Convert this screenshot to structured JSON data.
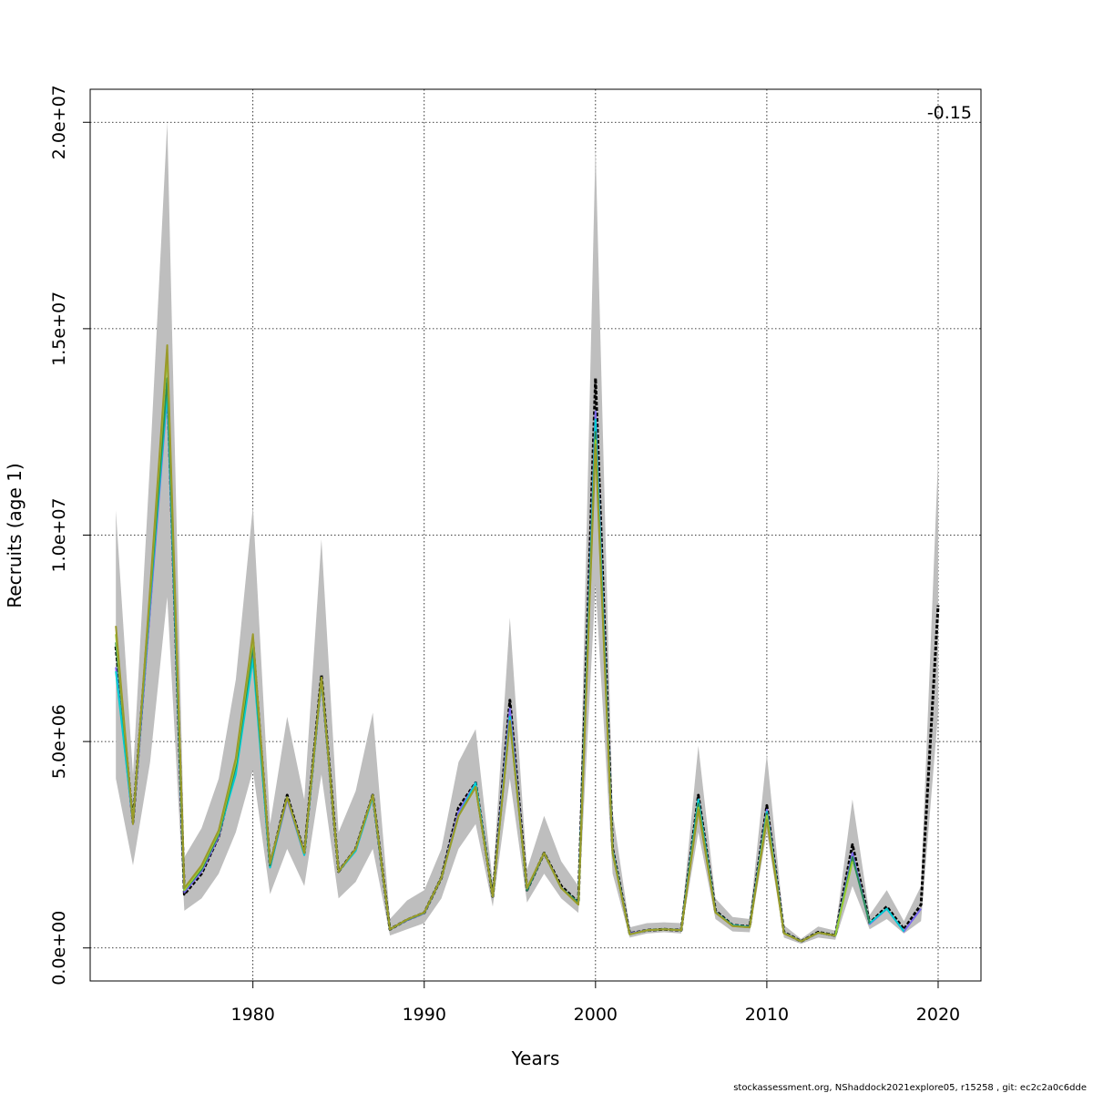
{
  "chart_data": {
    "type": "line",
    "xlabel": "Years",
    "ylabel": "Recruits (age 1)",
    "xlim": [
      1970.5,
      2022.5
    ],
    "ylim": [
      -800000,
      20800000
    ],
    "x_ticks": [
      1980,
      1990,
      2000,
      2010,
      2020
    ],
    "x_tick_labels": [
      "1980",
      "1990",
      "2000",
      "2010",
      "2020"
    ],
    "y_ticks": [
      0,
      5000000,
      10000000,
      15000000,
      20000000
    ],
    "y_tick_labels": [
      "0.0e+00",
      "5.0e+06",
      "1.0e+07",
      "1.5e+07",
      "2.0e+07"
    ],
    "grid": true,
    "annotation": "-0.15",
    "x": [
      1972,
      1973,
      1974,
      1975,
      1976,
      1977,
      1978,
      1979,
      1980,
      1981,
      1982,
      1983,
      1984,
      1985,
      1986,
      1987,
      1988,
      1989,
      1990,
      1991,
      1992,
      1993,
      1994,
      1995,
      1996,
      1997,
      1998,
      1999,
      2000,
      2001,
      2002,
      2003,
      2004,
      2005,
      2006,
      2007,
      2008,
      2009,
      2010,
      2011,
      2012,
      2013,
      2014,
      2015,
      2016,
      2017,
      2018,
      2019,
      2020
    ],
    "band": {
      "lower": [
        4100000,
        2000000,
        4500000,
        8500000,
        900000,
        1200000,
        1800000,
        2800000,
        4300000,
        1300000,
        2400000,
        1500000,
        4200000,
        1200000,
        1600000,
        2400000,
        300000,
        450000,
        600000,
        1200000,
        2400000,
        3000000,
        1000000,
        4100000,
        1100000,
        1800000,
        1200000,
        850000,
        8800000,
        1800000,
        250000,
        350000,
        380000,
        350000,
        2800000,
        700000,
        400000,
        380000,
        2800000,
        250000,
        100000,
        250000,
        200000,
        1500000,
        450000,
        700000,
        350000,
        650000,
        5700000
      ],
      "upper": [
        10600000,
        4200000,
        11800000,
        20000000,
        2200000,
        2900000,
        4100000,
        6500000,
        10700000,
        3000000,
        5600000,
        3600000,
        9900000,
        2800000,
        3800000,
        5700000,
        700000,
        1150000,
        1400000,
        2400000,
        4500000,
        5300000,
        1600000,
        8000000,
        1900000,
        3200000,
        2100000,
        1500000,
        19400000,
        3300000,
        500000,
        600000,
        620000,
        600000,
        4900000,
        1200000,
        750000,
        700000,
        4700000,
        550000,
        220000,
        520000,
        420000,
        3600000,
        800000,
        1400000,
        650000,
        1500000,
        11900000
      ],
      "color": "#bebebe"
    },
    "series": [
      {
        "color": "#000000",
        "values": [
          7300000,
          3050000,
          8400000,
          13700000,
          1300000,
          1800000,
          2700000,
          4400000,
          7400000,
          2000000,
          3700000,
          2300000,
          6600000,
          1850000,
          2400000,
          3700000,
          450000,
          680000,
          850000,
          1700000,
          3400000,
          4000000,
          1250000,
          6000000,
          1400000,
          2300000,
          1500000,
          1100000,
          13800000,
          2400000,
          350000,
          430000,
          450000,
          430000,
          3700000,
          900000,
          550000,
          520000,
          3450000,
          380000,
          160000,
          380000,
          300000,
          2500000,
          600000,
          1000000,
          450000,
          1050000,
          8300000
        ]
      },
      {
        "color": "#7b68ee",
        "values": [
          6800000,
          3000000,
          8200000,
          13400000,
          1350000,
          1850000,
          2700000,
          4300000,
          7100000,
          1950000,
          3600000,
          2250000,
          6500000,
          1850000,
          2350000,
          3650000,
          450000,
          670000,
          840000,
          1700000,
          3300000,
          4000000,
          1250000,
          5800000,
          1400000,
          2300000,
          1450000,
          1100000,
          13000000,
          2350000,
          350000,
          430000,
          450000,
          430000,
          3600000,
          880000,
          540000,
          510000,
          3350000,
          370000,
          160000,
          370000,
          300000,
          2300000,
          580000,
          950000,
          400000,
          950000,
          null
        ]
      },
      {
        "color": "#00ced1",
        "values": [
          6700000,
          3050000,
          8400000,
          13500000,
          1400000,
          1900000,
          2750000,
          4200000,
          7000000,
          1950000,
          3650000,
          2250000,
          6500000,
          1850000,
          2350000,
          3650000,
          450000,
          680000,
          850000,
          1700000,
          3200000,
          4000000,
          1250000,
          5600000,
          1400000,
          2300000,
          1450000,
          1100000,
          12800000,
          2350000,
          330000,
          430000,
          450000,
          430000,
          3600000,
          870000,
          550000,
          510000,
          3300000,
          360000,
          160000,
          370000,
          300000,
          2200000,
          600000,
          950000,
          400000,
          null,
          null
        ]
      },
      {
        "color": "#2e8b57",
        "values": [
          7400000,
          3050000,
          8500000,
          13800000,
          1400000,
          1900000,
          2750000,
          4400000,
          7300000,
          2000000,
          3650000,
          2300000,
          6550000,
          1850000,
          2400000,
          3700000,
          450000,
          680000,
          850000,
          1700000,
          3200000,
          3900000,
          1250000,
          5500000,
          1400000,
          2300000,
          1450000,
          1100000,
          12500000,
          2300000,
          330000,
          430000,
          450000,
          430000,
          3500000,
          870000,
          540000,
          500000,
          3250000,
          360000,
          160000,
          370000,
          300000,
          2200000,
          600000,
          null,
          null,
          null,
          null
        ]
      },
      {
        "color": "#9acd32",
        "values": [
          7600000,
          3050000,
          8600000,
          14400000,
          1400000,
          1950000,
          2800000,
          4500000,
          7500000,
          2050000,
          3650000,
          2300000,
          6550000,
          1850000,
          2400000,
          3700000,
          450000,
          690000,
          860000,
          1700000,
          3200000,
          3900000,
          1250000,
          5500000,
          1450000,
          2300000,
          1450000,
          1050000,
          12300000,
          2300000,
          330000,
          430000,
          450000,
          430000,
          3400000,
          860000,
          530000,
          500000,
          3200000,
          360000,
          160000,
          370000,
          300000,
          2100000,
          null,
          null,
          null,
          null,
          null
        ]
      },
      {
        "color": "#9a9a2a",
        "values": [
          7800000,
          3000000,
          8700000,
          14600000,
          1450000,
          2000000,
          2850000,
          4600000,
          7600000,
          2050000,
          3650000,
          2300000,
          6550000,
          1850000,
          2400000,
          3700000,
          450000,
          690000,
          860000,
          1700000,
          3200000,
          3900000,
          1250000,
          5500000,
          1450000,
          2300000,
          1450000,
          1050000,
          12200000,
          2300000,
          330000,
          430000,
          450000,
          430000,
          3350000,
          860000,
          530000,
          500000,
          3100000,
          350000,
          160000,
          370000,
          300000,
          null,
          null,
          null,
          null,
          null,
          null
        ]
      }
    ]
  },
  "footer": {
    "text": "stockassessment.org, NShaddock2021explore05, r15258 , git: ec2c2a0c6dde"
  }
}
